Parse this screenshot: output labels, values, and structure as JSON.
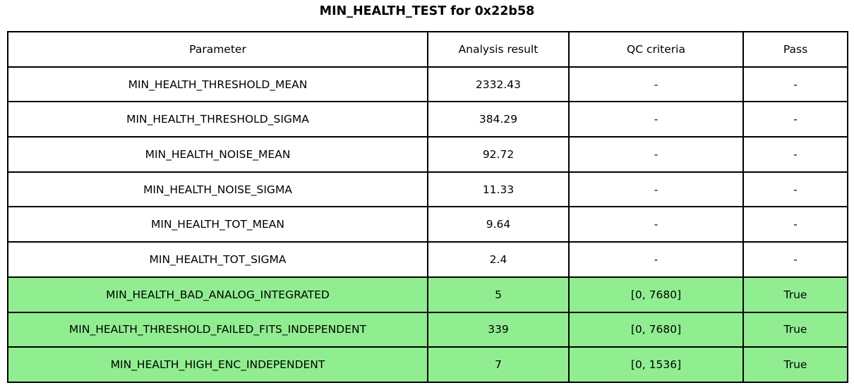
{
  "title": "MIN_HEALTH_TEST for 0x22b58",
  "colors": {
    "pass_row_bg": "#90EE90",
    "default_row_bg": "#FFFFFF",
    "border": "#000000"
  },
  "table": {
    "columns": [
      "Parameter",
      "Analysis result",
      "QC criteria",
      "Pass"
    ],
    "rows": [
      {
        "parameter": "MIN_HEALTH_THRESHOLD_MEAN",
        "result": "2332.43",
        "qc": "-",
        "pass": "-",
        "highlighted": false
      },
      {
        "parameter": "MIN_HEALTH_THRESHOLD_SIGMA",
        "result": "384.29",
        "qc": "-",
        "pass": "-",
        "highlighted": false
      },
      {
        "parameter": "MIN_HEALTH_NOISE_MEAN",
        "result": "92.72",
        "qc": "-",
        "pass": "-",
        "highlighted": false
      },
      {
        "parameter": "MIN_HEALTH_NOISE_SIGMA",
        "result": "11.33",
        "qc": "-",
        "pass": "-",
        "highlighted": false
      },
      {
        "parameter": "MIN_HEALTH_TOT_MEAN",
        "result": "9.64",
        "qc": "-",
        "pass": "-",
        "highlighted": false
      },
      {
        "parameter": "MIN_HEALTH_TOT_SIGMA",
        "result": "2.4",
        "qc": "-",
        "pass": "-",
        "highlighted": false
      },
      {
        "parameter": "MIN_HEALTH_BAD_ANALOG_INTEGRATED",
        "result": "5",
        "qc": "[0, 7680]",
        "pass": "True",
        "highlighted": true
      },
      {
        "parameter": "MIN_HEALTH_THRESHOLD_FAILED_FITS_INDEPENDENT",
        "result": "339",
        "qc": "[0, 7680]",
        "pass": "True",
        "highlighted": true
      },
      {
        "parameter": "MIN_HEALTH_HIGH_ENC_INDEPENDENT",
        "result": "7",
        "qc": "[0, 1536]",
        "pass": "True",
        "highlighted": true
      }
    ]
  },
  "chart_data": {
    "type": "table",
    "title": "MIN_HEALTH_TEST for 0x22b58",
    "columns": [
      "Parameter",
      "Analysis result",
      "QC criteria",
      "Pass"
    ],
    "rows": [
      [
        "MIN_HEALTH_THRESHOLD_MEAN",
        "2332.43",
        "-",
        "-"
      ],
      [
        "MIN_HEALTH_THRESHOLD_SIGMA",
        "384.29",
        "-",
        "-"
      ],
      [
        "MIN_HEALTH_NOISE_MEAN",
        "92.72",
        "-",
        "-"
      ],
      [
        "MIN_HEALTH_NOISE_SIGMA",
        "11.33",
        "-",
        "-"
      ],
      [
        "MIN_HEALTH_TOT_MEAN",
        "9.64",
        "-",
        "-"
      ],
      [
        "MIN_HEALTH_TOT_SIGMA",
        "2.4",
        "-",
        "-"
      ],
      [
        "MIN_HEALTH_BAD_ANALOG_INTEGRATED",
        "5",
        "[0, 7680]",
        "True"
      ],
      [
        "MIN_HEALTH_THRESHOLD_FAILED_FITS_INDEPENDENT",
        "339",
        "[0, 7680]",
        "True"
      ],
      [
        "MIN_HEALTH_HIGH_ENC_INDEPENDENT",
        "7",
        "[0, 1536]",
        "True"
      ]
    ],
    "highlighted_rows": [
      6,
      7,
      8
    ],
    "highlight_color": "#90EE90"
  }
}
